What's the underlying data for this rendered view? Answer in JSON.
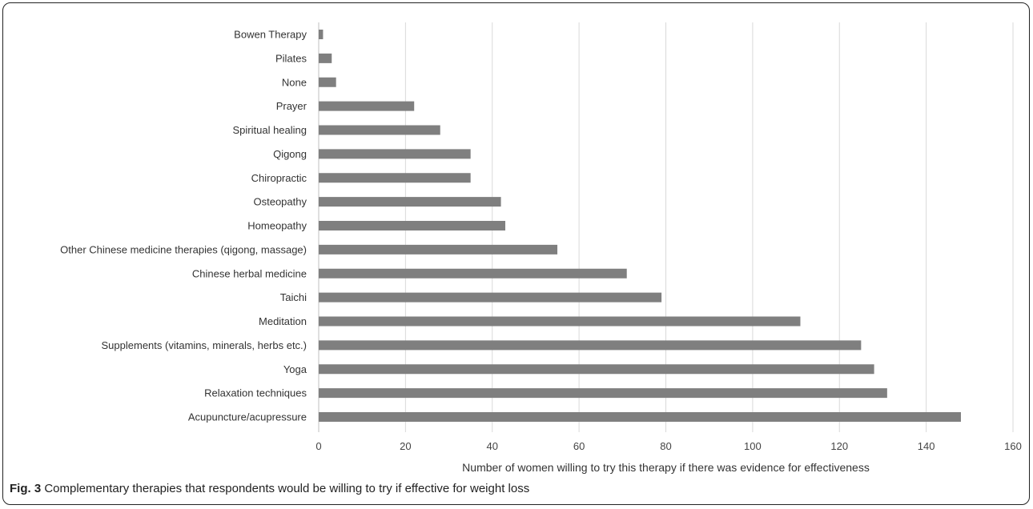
{
  "caption": {
    "label": "Fig. 3",
    "text": " Complementary therapies that respondents would be willing to try if effective for weight loss"
  },
  "colors": {
    "bar": "#7f7f7f",
    "grid": "#d9d9d9",
    "axis": "#bfbfbf"
  },
  "chart_data": {
    "type": "bar",
    "orientation": "horizontal",
    "title": "",
    "xlabel": "Number of women willing to try this therapy if there was evidence for effectiveness",
    "ylabel": "",
    "xlim": [
      0,
      160
    ],
    "xticks": [
      0,
      20,
      40,
      60,
      80,
      100,
      120,
      140,
      160
    ],
    "grid": true,
    "categories": [
      "Bowen Therapy",
      "Pilates",
      "None",
      "Prayer",
      "Spiritual healing",
      "Qigong",
      "Chiropractic",
      "Osteopathy",
      "Homeopathy",
      "Other Chinese medicine therapies (qigong, massage)",
      "Chinese herbal medicine",
      "Taichi",
      "Meditation",
      "Supplements (vitamins, minerals, herbs etc.)",
      "Yoga",
      "Relaxation techniques",
      "Acupuncture/acupressure"
    ],
    "values": [
      1,
      3,
      4,
      22,
      28,
      35,
      35,
      42,
      43,
      55,
      71,
      79,
      111,
      125,
      128,
      131,
      148
    ]
  }
}
